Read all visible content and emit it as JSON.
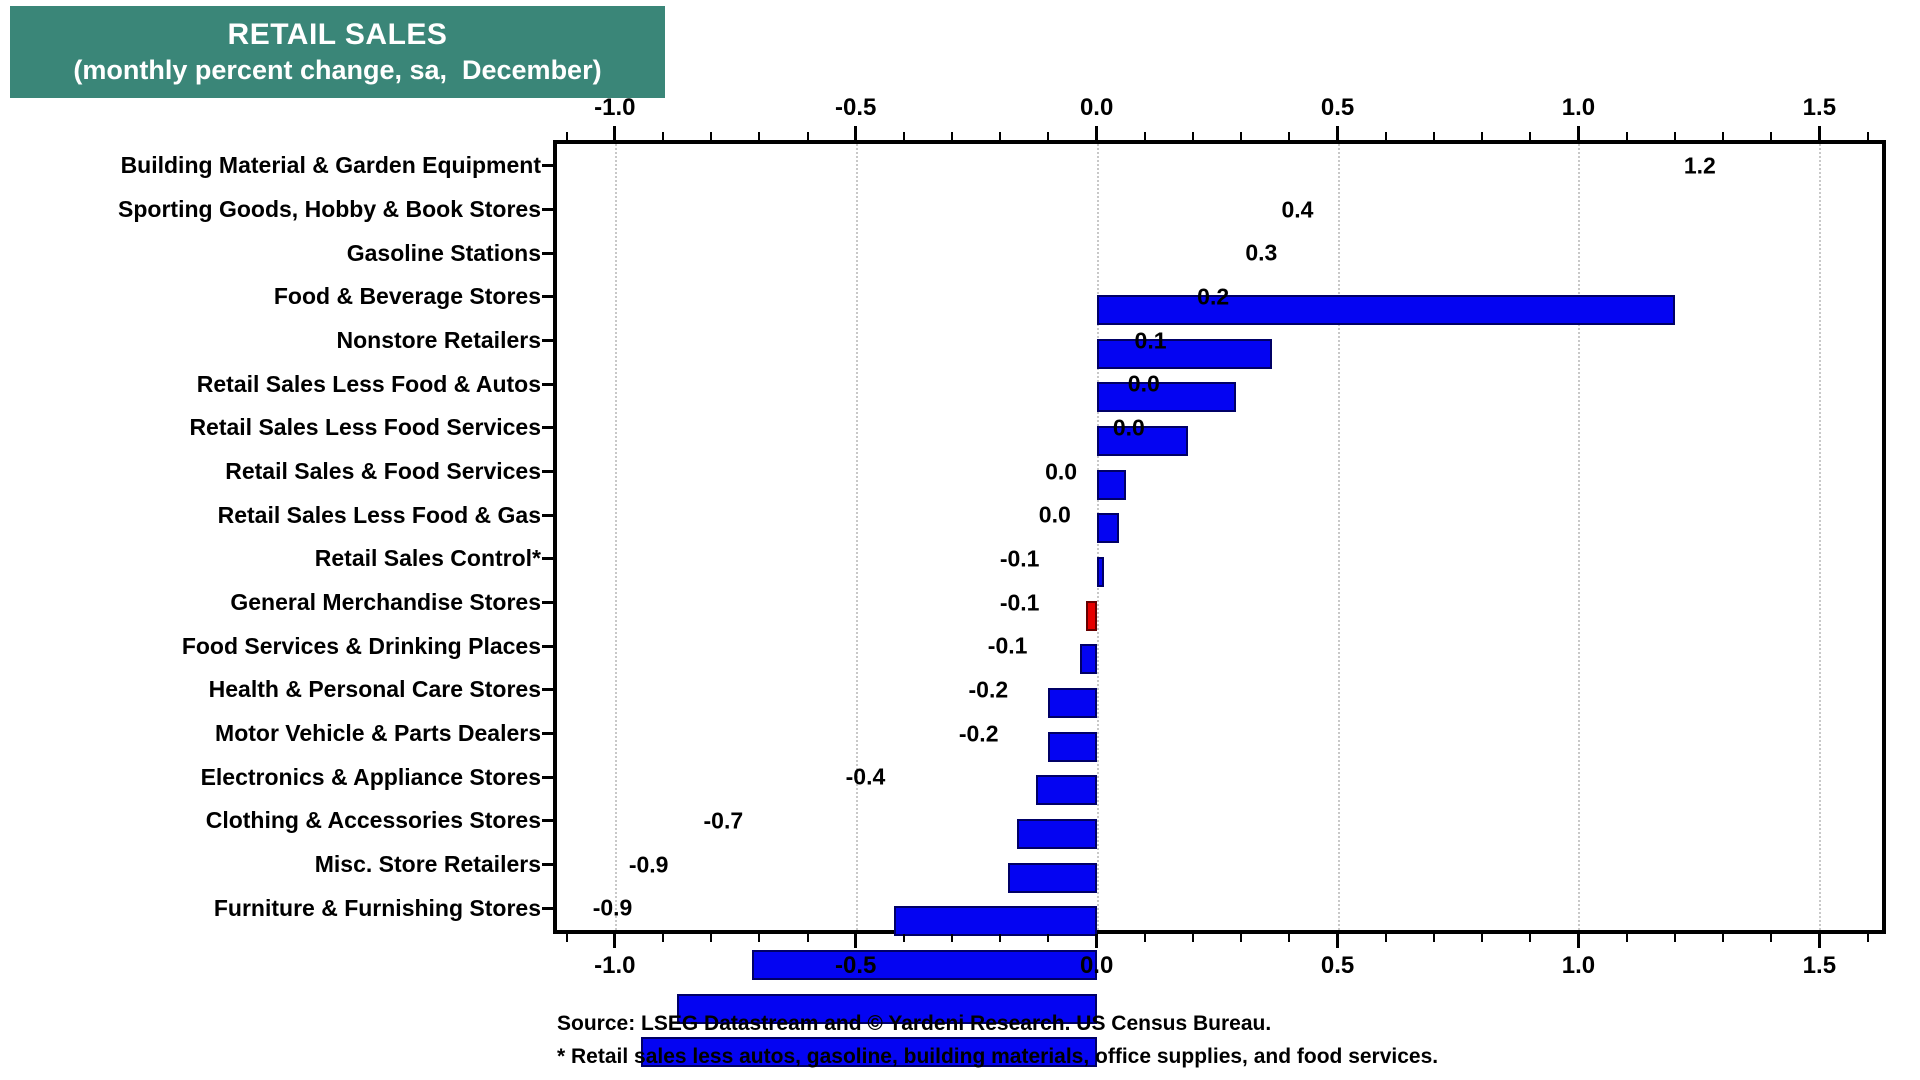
{
  "title": {
    "line1": "RETAIL SALES",
    "line2": "(monthly percent change, sa,  December)"
  },
  "source": {
    "line1": "Source: LSEG Datastream and © Yardeni Research. US Census Bureau.",
    "line2": "* Retail sales less autos, gasoline, building materials, office supplies, and food services."
  },
  "colors": {
    "title_bg": "#3a8678",
    "title_text": "#ffffff",
    "bar_blue": "#0404f2",
    "bar_blue_border": "#000066",
    "bar_red": "#e60000",
    "bar_red_border": "#660000",
    "gridline": "#c8c8c8",
    "frame": "#000000"
  },
  "chart_data": {
    "type": "bar",
    "orientation": "horizontal",
    "title": "RETAIL SALES",
    "subtitle": "(monthly percent change, sa,  December)",
    "xlabel": "",
    "ylabel": "",
    "xlim": [
      -1.12,
      1.63
    ],
    "x_major_ticks": [
      -1.0,
      -0.5,
      0.0,
      0.5,
      1.0,
      1.5
    ],
    "x_tick_labels": [
      "-1.0",
      "-0.5",
      "0.0",
      "0.5",
      "1.0",
      "1.5"
    ],
    "x_minor_tick_step": 0.1,
    "grid": "dotted vertical gridlines at major ticks",
    "legend": "none",
    "categories": [
      "Building Material & Garden Equipment",
      "Sporting Goods, Hobby & Book Stores",
      "Gasoline Stations",
      "Food & Beverage Stores",
      "Nonstore Retailers",
      "Retail Sales Less Food & Autos",
      "Retail Sales Less Food Services",
      "Retail Sales & Food Services",
      "Retail Sales Less Food & Gas",
      "Retail Sales Control*",
      "General Merchandise Stores",
      "Food Services & Drinking Places",
      "Health & Personal Care Stores",
      "Motor Vehicle & Parts Dealers",
      "Electronics & Appliance Stores",
      "Clothing & Accessories Stores",
      "Misc. Store Retailers",
      "Furniture & Furnishing Stores"
    ],
    "values": [
      1.2,
      0.4,
      0.3,
      0.2,
      0.1,
      0.0,
      0.0,
      0.0,
      0.0,
      -0.1,
      -0.1,
      -0.1,
      -0.2,
      -0.2,
      -0.4,
      -0.7,
      -0.9,
      -0.9
    ],
    "value_labels": [
      "1.2",
      "0.4",
      "0.3",
      "0.2",
      "0.1",
      "0.0",
      "0.0",
      "0.0",
      "0.0",
      "-0.1",
      "-0.1",
      "-0.1",
      "-0.2",
      "-0.2",
      "-0.4",
      "-0.7",
      "-0.9",
      "-0.9"
    ],
    "bar_lengths": [
      1.2,
      0.365,
      0.29,
      0.19,
      0.06,
      0.046,
      0.015,
      -0.022,
      -0.035,
      -0.1,
      -0.1,
      -0.125,
      -0.165,
      -0.185,
      -0.42,
      -0.715,
      -0.87,
      -0.945
    ],
    "bar_colors": [
      "blue",
      "blue",
      "blue",
      "blue",
      "blue",
      "blue",
      "blue",
      "red",
      "blue",
      "blue",
      "blue",
      "blue",
      "blue",
      "blue",
      "blue",
      "blue",
      "blue",
      "blue"
    ]
  }
}
